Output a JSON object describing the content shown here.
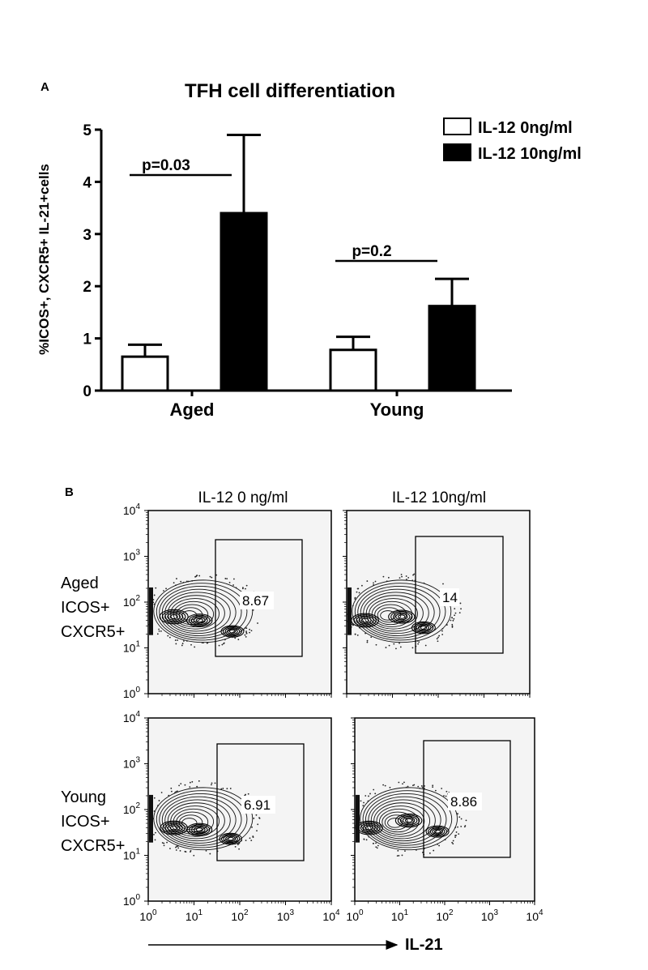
{
  "panel_a": {
    "letter": "A",
    "title": "TFH cell differentiation",
    "ylabel": "%ICOS+, CXCR5+ IL-21+cells",
    "legend": [
      "IL-12 0ng/ml",
      "IL-12 10ng/ml"
    ],
    "pvalues": [
      "p=0.03",
      "p=0.2"
    ]
  },
  "panel_b": {
    "letter": "B",
    "col_titles": [
      "IL-12 0 ng/ml",
      "IL-12 10ng/ml"
    ],
    "row_labels": [
      [
        "Aged",
        "ICOS+",
        "CXCR5+"
      ],
      [
        "Young",
        "ICOS+",
        "CXCR5+"
      ]
    ],
    "gate_values": [
      "8.67",
      "14",
      "6.91",
      "8.86"
    ],
    "y_ticks": [
      "10",
      "10",
      "10",
      "10",
      "10"
    ],
    "y_tick_exp": [
      "4",
      "3",
      "2",
      "1",
      "0"
    ],
    "x_ticks": [
      "10",
      "10",
      "10",
      "10",
      "10"
    ],
    "x_tick_exp": [
      "0",
      "1",
      "2",
      "3",
      "4"
    ],
    "x_axis_label": "IL-21"
  },
  "chart_data": [
    {
      "type": "bar",
      "title": "TFH cell differentiation",
      "ylabel": "%ICOS+, CXCR5+ IL-21+cells",
      "xlabel": "",
      "categories": [
        "Aged",
        "Young"
      ],
      "series": [
        {
          "name": "IL-12 0ng/ml",
          "values": [
            0.65,
            0.78
          ],
          "errors": [
            0.23,
            0.25
          ],
          "color": "#ffffff"
        },
        {
          "name": "IL-12 10ng/ml",
          "values": [
            3.4,
            1.62
          ],
          "errors": [
            1.5,
            0.52
          ],
          "color": "#000000"
        }
      ],
      "ylim": [
        0,
        5
      ],
      "yticks": [
        0,
        1,
        2,
        3,
        4,
        5
      ],
      "annotations": [
        {
          "text": "p=0.03",
          "category": "Aged"
        },
        {
          "text": "p=0.2",
          "category": "Young"
        }
      ]
    },
    {
      "type": "scatter",
      "subtype": "flow-cytometry contour plots",
      "xlabel": "IL-21",
      "xscale": "log",
      "yscale": "log",
      "xlim": [
        1,
        10000
      ],
      "ylim": [
        1,
        10000
      ],
      "panels": [
        {
          "row": "Aged ICOS+ CXCR5+",
          "col": "IL-12 0 ng/ml",
          "gate_percent": 8.67
        },
        {
          "row": "Aged ICOS+ CXCR5+",
          "col": "IL-12 10ng/ml",
          "gate_percent": 14
        },
        {
          "row": "Young ICOS+ CXCR5+",
          "col": "IL-12 0 ng/ml",
          "gate_percent": 6.91
        },
        {
          "row": "Young ICOS+ CXCR5+",
          "col": "IL-12 10ng/ml",
          "gate_percent": 8.86
        }
      ]
    }
  ]
}
